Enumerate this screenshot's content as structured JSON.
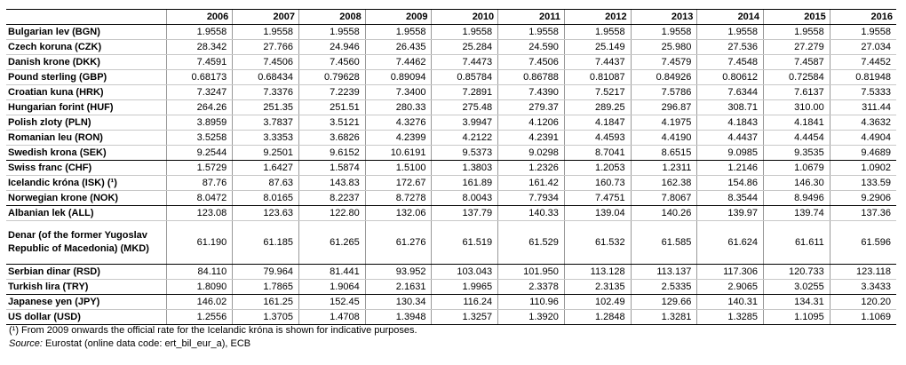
{
  "table": {
    "years": [
      "2006",
      "2007",
      "2008",
      "2009",
      "2010",
      "2011",
      "2012",
      "2013",
      "2014",
      "2015",
      "2016"
    ],
    "rows": [
      {
        "label": "Bulgarian lev (BGN)",
        "values": [
          "1.9558",
          "1.9558",
          "1.9558",
          "1.9558",
          "1.9558",
          "1.9558",
          "1.9558",
          "1.9558",
          "1.9558",
          "1.9558",
          "1.9558"
        ]
      },
      {
        "label": "Czech koruna (CZK)",
        "values": [
          "28.342",
          "27.766",
          "24.946",
          "26.435",
          "25.284",
          "24.590",
          "25.149",
          "25.980",
          "27.536",
          "27.279",
          "27.034"
        ]
      },
      {
        "label": "Danish krone (DKK)",
        "values": [
          "7.4591",
          "7.4506",
          "7.4560",
          "7.4462",
          "7.4473",
          "7.4506",
          "7.4437",
          "7.4579",
          "7.4548",
          "7.4587",
          "7.4452"
        ]
      },
      {
        "label": "Pound sterling (GBP)",
        "values": [
          "0.68173",
          "0.68434",
          "0.79628",
          "0.89094",
          "0.85784",
          "0.86788",
          "0.81087",
          "0.84926",
          "0.80612",
          "0.72584",
          "0.81948"
        ]
      },
      {
        "label": "Croatian kuna (HRK)",
        "values": [
          "7.3247",
          "7.3376",
          "7.2239",
          "7.3400",
          "7.2891",
          "7.4390",
          "7.5217",
          "7.5786",
          "7.6344",
          "7.6137",
          "7.5333"
        ]
      },
      {
        "label": "Hungarian forint (HUF)",
        "values": [
          "264.26",
          "251.35",
          "251.51",
          "280.33",
          "275.48",
          "279.37",
          "289.25",
          "296.87",
          "308.71",
          "310.00",
          "311.44"
        ]
      },
      {
        "label": "Polish zloty (PLN)",
        "values": [
          "3.8959",
          "3.7837",
          "3.5121",
          "4.3276",
          "3.9947",
          "4.1206",
          "4.1847",
          "4.1975",
          "4.1843",
          "4.1841",
          "4.3632"
        ]
      },
      {
        "label": "Romanian leu (RON)",
        "values": [
          "3.5258",
          "3.3353",
          "3.6826",
          "4.2399",
          "4.2122",
          "4.2391",
          "4.4593",
          "4.4190",
          "4.4437",
          "4.4454",
          "4.4904"
        ]
      },
      {
        "label": "Swedish krona (SEK)",
        "values": [
          "9.2544",
          "9.2501",
          "9.6152",
          "10.6191",
          "9.5373",
          "9.0298",
          "8.7041",
          "8.6515",
          "9.0985",
          "9.3535",
          "9.4689"
        ]
      },
      {
        "label": "Swiss franc (CHF)",
        "values": [
          "1.5729",
          "1.6427",
          "1.5874",
          "1.5100",
          "1.3803",
          "1.2326",
          "1.2053",
          "1.2311",
          "1.2146",
          "1.0679",
          "1.0902"
        ]
      },
      {
        "label": "Icelandic króna (ISK) (¹)",
        "values": [
          "87.76",
          "87.63",
          "143.83",
          "172.67",
          "161.89",
          "161.42",
          "160.73",
          "162.38",
          "154.86",
          "146.30",
          "133.59"
        ]
      },
      {
        "label": "Norwegian krone (NOK)",
        "values": [
          "8.0472",
          "8.0165",
          "8.2237",
          "8.7278",
          "8.0043",
          "7.7934",
          "7.4751",
          "7.8067",
          "8.3544",
          "8.9496",
          "9.2906"
        ]
      },
      {
        "label": "Albanian lek (ALL)",
        "values": [
          "123.08",
          "123.63",
          "122.80",
          "132.06",
          "137.79",
          "140.33",
          "139.04",
          "140.26",
          "139.97",
          "139.74",
          "137.36"
        ]
      },
      {
        "label": "Denar (of the former Yugoslav Republic of Macedonia) (MKD)",
        "values": [
          "61.190",
          "61.185",
          "61.265",
          "61.276",
          "61.519",
          "61.529",
          "61.532",
          "61.585",
          "61.624",
          "61.611",
          "61.596"
        ]
      },
      {
        "label": "Serbian dinar (RSD)",
        "values": [
          "84.110",
          "79.964",
          "81.441",
          "93.952",
          "103.043",
          "101.950",
          "113.128",
          "113.137",
          "117.306",
          "120.733",
          "123.118"
        ]
      },
      {
        "label": "Turkish lira (TRY)",
        "values": [
          "1.8090",
          "1.7865",
          "1.9064",
          "2.1631",
          "1.9965",
          "2.3378",
          "2.3135",
          "2.5335",
          "2.9065",
          "3.0255",
          "3.3433"
        ]
      },
      {
        "label": "Japanese yen (JPY)",
        "values": [
          "146.02",
          "161.25",
          "152.45",
          "130.34",
          "116.24",
          "110.96",
          "102.49",
          "129.66",
          "140.31",
          "134.31",
          "120.20"
        ]
      },
      {
        "label": "US dollar (USD)",
        "values": [
          "1.2556",
          "1.3705",
          "1.4708",
          "1.3948",
          "1.3257",
          "1.3920",
          "1.2848",
          "1.3281",
          "1.3285",
          "1.1095",
          "1.1069"
        ]
      }
    ]
  },
  "notes": {
    "footnote": "(¹) From 2009 onwards the official rate for the Icelandic króna is shown for indicative purposes.",
    "source_label": "Source:",
    "source_text": " Eurostat (online data code: ert_bil_eur_a), ECB"
  }
}
